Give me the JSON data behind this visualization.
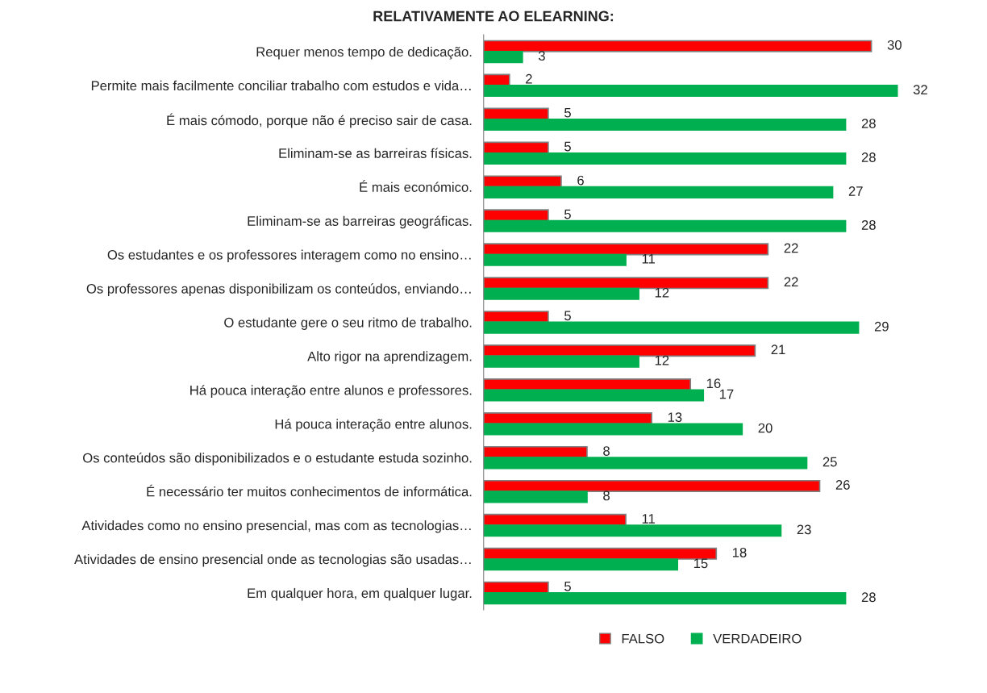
{
  "chart_data": {
    "type": "bar",
    "orientation": "horizontal",
    "title": "RELATIVAMENTE AO ELEARNING:",
    "categories": [
      "Requer menos tempo de dedicação.",
      "Permite mais facilmente conciliar trabalho com estudos e vida…",
      "É mais cómodo, porque não é preciso sair de casa.",
      "Eliminam-se as barreiras físicas.",
      "É mais económico.",
      "Eliminam-se as barreiras geográficas.",
      "Os estudantes e os professores interagem como no ensino…",
      "Os professores apenas disponibilizam os conteúdos, enviando…",
      "O estudante gere o seu ritmo de trabalho.",
      "Alto rigor na aprendizagem.",
      "Há pouca interação entre alunos e professores.",
      "Há pouca interação entre alunos.",
      "Os conteúdos são disponibilizados e o estudante estuda sozinho.",
      "É necessário ter muitos conhecimentos de informática.",
      "Atividades como no ensino presencial, mas com as tecnologias…",
      "Atividades de ensino presencial onde as tecnologias são usadas…",
      "Em qualquer hora, em qualquer lugar."
    ],
    "series": [
      {
        "name": "FALSO",
        "color": "#ff0000",
        "values": [
          30,
          2,
          5,
          5,
          6,
          5,
          22,
          22,
          5,
          21,
          16,
          13,
          8,
          26,
          11,
          18,
          5
        ]
      },
      {
        "name": "VERDADEIRO",
        "color": "#00b050",
        "values": [
          3,
          32,
          28,
          28,
          27,
          28,
          11,
          12,
          29,
          12,
          17,
          20,
          25,
          8,
          23,
          15,
          28
        ]
      }
    ],
    "data_labels": true,
    "legend": "bottom",
    "grid": false
  }
}
